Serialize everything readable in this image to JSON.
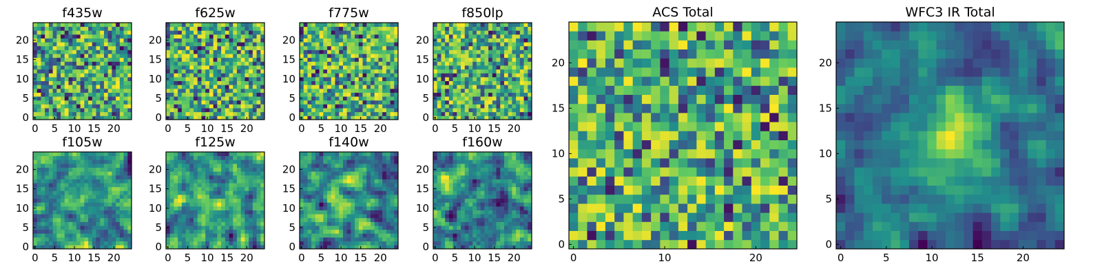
{
  "figure": {
    "background": "#ffffff",
    "colormap": "viridis",
    "colormap_stops": [
      "#440154",
      "#3b528b",
      "#21918c",
      "#5ec962",
      "#fde725"
    ]
  },
  "chart_data": [
    {
      "type": "heatmap",
      "title": "f435w",
      "grid_size": [
        25,
        25
      ],
      "xlim": [
        0,
        24
      ],
      "ylim": [
        0,
        24
      ],
      "xticks": [
        0,
        5,
        10,
        15,
        20
      ],
      "yticks": [
        0,
        5,
        10,
        15,
        20
      ],
      "xtick_labels": [
        "0",
        "5",
        "10",
        "15",
        "20"
      ],
      "ytick_labels": [
        "0",
        "5",
        "10",
        "15",
        "20"
      ],
      "value_range": [
        0,
        1
      ],
      "pattern": "random pixel noise",
      "seed": 11
    },
    {
      "type": "heatmap",
      "title": "f625w",
      "grid_size": [
        25,
        25
      ],
      "xlim": [
        0,
        24
      ],
      "ylim": [
        0,
        24
      ],
      "xticks": [
        0,
        5,
        10,
        15,
        20
      ],
      "yticks": [
        0,
        5,
        10,
        15,
        20
      ],
      "xtick_labels": [
        "0",
        "5",
        "10",
        "15",
        "20"
      ],
      "ytick_labels": [
        "0",
        "5",
        "10",
        "15",
        "20"
      ],
      "value_range": [
        0,
        1
      ],
      "pattern": "random pixel noise",
      "seed": 23
    },
    {
      "type": "heatmap",
      "title": "f775w",
      "grid_size": [
        25,
        25
      ],
      "xlim": [
        0,
        24
      ],
      "ylim": [
        0,
        24
      ],
      "xticks": [
        0,
        5,
        10,
        15,
        20
      ],
      "yticks": [
        0,
        5,
        10,
        15,
        20
      ],
      "xtick_labels": [
        "0",
        "5",
        "10",
        "15",
        "20"
      ],
      "ytick_labels": [
        "0",
        "5",
        "10",
        "15",
        "20"
      ],
      "value_range": [
        0,
        1
      ],
      "pattern": "random pixel noise",
      "seed": 37
    },
    {
      "type": "heatmap",
      "title": "f850lp",
      "grid_size": [
        25,
        25
      ],
      "xlim": [
        0,
        24
      ],
      "ylim": [
        0,
        24
      ],
      "xticks": [
        0,
        5,
        10,
        15,
        20
      ],
      "yticks": [
        0,
        5,
        10,
        15,
        20
      ],
      "xtick_labels": [
        "0",
        "5",
        "10",
        "15",
        "20"
      ],
      "ytick_labels": [
        "0",
        "5",
        "10",
        "15",
        "20"
      ],
      "value_range": [
        0,
        1
      ],
      "pattern": "random pixel noise",
      "seed": 41
    },
    {
      "type": "heatmap",
      "title": "f105w",
      "grid_size": [
        25,
        25
      ],
      "xlim": [
        0,
        24
      ],
      "ylim": [
        0,
        24
      ],
      "xticks": [
        0,
        5,
        10,
        15,
        20
      ],
      "yticks": [
        0,
        5,
        10,
        15,
        20
      ],
      "xtick_labels": [
        "0",
        "5",
        "10",
        "15",
        "20"
      ],
      "ytick_labels": [
        "0",
        "5",
        "10",
        "15",
        "20"
      ],
      "value_range": [
        0,
        1
      ],
      "pattern": "correlated noise",
      "seed": 53
    },
    {
      "type": "heatmap",
      "title": "f125w",
      "grid_size": [
        25,
        25
      ],
      "xlim": [
        0,
        24
      ],
      "ylim": [
        0,
        24
      ],
      "xticks": [
        0,
        5,
        10,
        15,
        20
      ],
      "yticks": [
        0,
        5,
        10,
        15,
        20
      ],
      "xtick_labels": [
        "0",
        "5",
        "10",
        "15",
        "20"
      ],
      "ytick_labels": [
        "0",
        "5",
        "10",
        "15",
        "20"
      ],
      "value_range": [
        0,
        1
      ],
      "pattern": "correlated noise",
      "seed": 67
    },
    {
      "type": "heatmap",
      "title": "f140w",
      "grid_size": [
        25,
        25
      ],
      "xlim": [
        0,
        24
      ],
      "ylim": [
        0,
        24
      ],
      "xticks": [
        0,
        5,
        10,
        15,
        20
      ],
      "yticks": [
        0,
        5,
        10,
        15,
        20
      ],
      "xtick_labels": [
        "0",
        "5",
        "10",
        "15",
        "20"
      ],
      "ytick_labels": [
        "0",
        "5",
        "10",
        "15",
        "20"
      ],
      "value_range": [
        0,
        1
      ],
      "pattern": "correlated noise",
      "seed": 71
    },
    {
      "type": "heatmap",
      "title": "f160w",
      "grid_size": [
        25,
        25
      ],
      "xlim": [
        0,
        24
      ],
      "ylim": [
        0,
        24
      ],
      "xticks": [
        0,
        5,
        10,
        15,
        20
      ],
      "yticks": [
        0,
        5,
        10,
        15,
        20
      ],
      "xtick_labels": [
        "0",
        "5",
        "10",
        "15",
        "20"
      ],
      "ytick_labels": [
        "0",
        "5",
        "10",
        "15",
        "20"
      ],
      "value_range": [
        0,
        1
      ],
      "pattern": "correlated noise",
      "seed": 83
    },
    {
      "type": "heatmap",
      "title": "ACS Total",
      "grid_size": [
        25,
        25
      ],
      "xlim": [
        0,
        24
      ],
      "ylim": [
        0,
        24
      ],
      "xticks": [
        0,
        10,
        20
      ],
      "yticks": [
        0,
        5,
        10,
        15,
        20
      ],
      "xtick_labels": [
        "0",
        "10",
        "20"
      ],
      "ytick_labels": [
        "0",
        "5",
        "10",
        "15",
        "20"
      ],
      "value_range": [
        0,
        1
      ],
      "pattern": "random pixel noise",
      "seed": 97
    },
    {
      "type": "heatmap",
      "title": "WFC3 IR Total",
      "grid_size": [
        25,
        25
      ],
      "xlim": [
        0,
        24
      ],
      "ylim": [
        0,
        24
      ],
      "xticks": [
        0,
        5,
        10,
        15,
        20
      ],
      "yticks": [
        0,
        5,
        10,
        15,
        20
      ],
      "xtick_labels": [
        "0",
        "5",
        "10",
        "15",
        "20"
      ],
      "ytick_labels": [
        "0",
        "5",
        "10",
        "15",
        "20"
      ],
      "value_range": [
        0,
        1
      ],
      "pattern": "correlated noise with central bright source",
      "seed": 101
    }
  ]
}
